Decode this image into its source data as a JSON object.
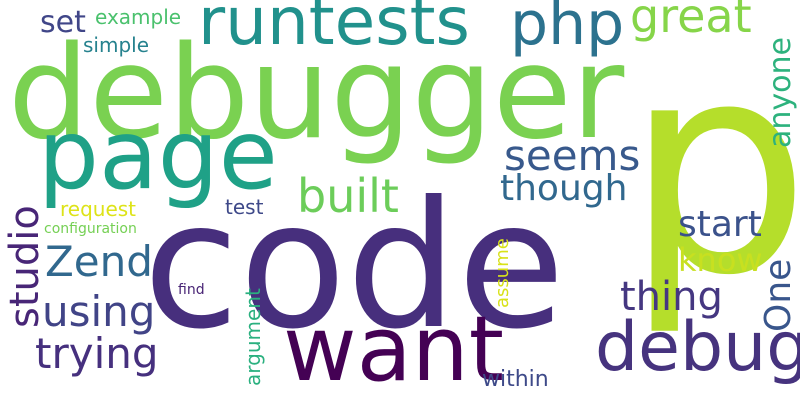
{
  "word_cloud": {
    "background_color": "#ffffff",
    "words": [
      {
        "text": "p",
        "color": "#b5de2b",
        "vertical": false
      },
      {
        "text": "code",
        "color": "#472f7d",
        "vertical": false
      },
      {
        "text": "debugger",
        "color": "#7ad151",
        "vertical": false
      },
      {
        "text": "page",
        "color": "#1fa187",
        "vertical": false
      },
      {
        "text": "want",
        "color": "#440154",
        "vertical": false
      },
      {
        "text": "debug",
        "color": "#46337e",
        "vertical": false
      },
      {
        "text": "runtests",
        "color": "#21918c",
        "vertical": false
      },
      {
        "text": "php",
        "color": "#2c728e",
        "vertical": false
      },
      {
        "text": "great",
        "color": "#86d549",
        "vertical": false
      },
      {
        "text": "built",
        "color": "#6ccd5a",
        "vertical": false
      },
      {
        "text": "seems",
        "color": "#38598c",
        "vertical": false
      },
      {
        "text": "though",
        "color": "#31688e",
        "vertical": false
      },
      {
        "text": "start",
        "color": "#3b528b",
        "vertical": false
      },
      {
        "text": "thing",
        "color": "#453781",
        "vertical": false
      },
      {
        "text": "Zend",
        "color": "#31688e",
        "vertical": false
      },
      {
        "text": "trying",
        "color": "#46307e",
        "vertical": false
      },
      {
        "text": "using",
        "color": "#414487",
        "vertical": false
      },
      {
        "text": "studio",
        "color": "#482677",
        "vertical": true
      },
      {
        "text": "anyone",
        "color": "#2db27d",
        "vertical": true
      },
      {
        "text": "One",
        "color": "#39568c",
        "vertical": true
      },
      {
        "text": "know",
        "color": "#c8e020",
        "vertical": false
      },
      {
        "text": "set",
        "color": "#404688",
        "vertical": false
      },
      {
        "text": "example",
        "color": "#4ac16d",
        "vertical": false
      },
      {
        "text": "simple",
        "color": "#26828e",
        "vertical": false
      },
      {
        "text": "request",
        "color": "#dde318",
        "vertical": false
      },
      {
        "text": "test",
        "color": "#3e4989",
        "vertical": false
      },
      {
        "text": "configuration",
        "color": "#75d054",
        "vertical": false
      },
      {
        "text": "argument",
        "color": "#2ab07f",
        "vertical": true
      },
      {
        "text": "assume",
        "color": "#d8e219",
        "vertical": true
      },
      {
        "text": "find",
        "color": "#482475",
        "vertical": false
      },
      {
        "text": "within",
        "color": "#3e4a89",
        "vertical": false
      }
    ]
  }
}
